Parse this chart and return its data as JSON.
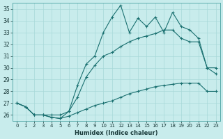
{
  "xlabel": "Humidex (Indice chaleur)",
  "bg_color": "#c8ecec",
  "grid_color": "#a8d8d8",
  "line_color": "#1a7070",
  "xlim": [
    -0.5,
    23.5
  ],
  "ylim": [
    25.5,
    35.5
  ],
  "xticks": [
    0,
    1,
    2,
    3,
    4,
    5,
    6,
    7,
    8,
    9,
    10,
    11,
    12,
    13,
    14,
    15,
    16,
    17,
    18,
    19,
    20,
    21,
    22,
    23
  ],
  "yticks": [
    26,
    27,
    28,
    29,
    30,
    31,
    32,
    33,
    34,
    35
  ],
  "series_jagged_x": [
    0,
    1,
    2,
    3,
    4,
    5,
    6,
    7,
    8,
    9,
    10,
    11,
    12,
    13,
    14,
    15,
    16,
    17,
    18,
    19,
    20,
    21,
    22,
    23
  ],
  "series_jagged_y": [
    27.0,
    26.7,
    26.0,
    26.0,
    25.8,
    25.7,
    26.3,
    28.5,
    30.3,
    31.0,
    33.0,
    34.3,
    35.3,
    33.0,
    34.2,
    33.5,
    34.3,
    33.0,
    34.7,
    33.5,
    33.2,
    32.5,
    30.0,
    30.0
  ],
  "series_mid_x": [
    0,
    1,
    2,
    3,
    4,
    5,
    6,
    7,
    8,
    9,
    10,
    11,
    12,
    13,
    14,
    15,
    16,
    17,
    18,
    19,
    20,
    21,
    22,
    23
  ],
  "series_mid_y": [
    27.0,
    26.7,
    26.0,
    26.0,
    26.0,
    26.0,
    26.3,
    27.5,
    29.2,
    30.2,
    31.0,
    31.3,
    31.8,
    32.2,
    32.5,
    32.7,
    32.9,
    33.2,
    33.2,
    32.5,
    32.2,
    32.2,
    30.0,
    29.5
  ],
  "series_low_x": [
    0,
    1,
    2,
    3,
    4,
    5,
    6,
    7,
    8,
    9,
    10,
    11,
    12,
    13,
    14,
    15,
    16,
    17,
    18,
    19,
    20,
    21,
    22,
    23
  ],
  "series_low_y": [
    27.0,
    26.7,
    26.0,
    26.0,
    25.8,
    25.7,
    25.9,
    26.2,
    26.5,
    26.8,
    27.0,
    27.2,
    27.5,
    27.8,
    28.0,
    28.2,
    28.4,
    28.5,
    28.6,
    28.7,
    28.7,
    28.7,
    28.0,
    28.0
  ]
}
